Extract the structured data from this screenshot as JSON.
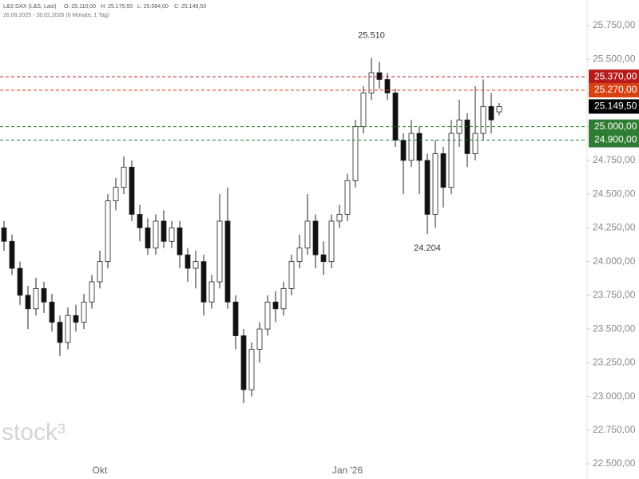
{
  "chart_data": {
    "type": "candlestick",
    "legend": "L&S DAX (L&S, Last)",
    "ohlc": [
      "O: 25.110,00",
      "H: 25.175,50",
      "L: 25.084,00",
      "C: 25.149,50"
    ],
    "range": "26.08.2025 - 28.02.2026 (6 Monate, 1 Tag)",
    "watermark": "stock³",
    "categories": [
      null,
      null,
      null,
      null,
      null,
      null,
      null,
      null,
      null,
      null,
      null,
      null,
      "Okt",
      null,
      null,
      null,
      null,
      null,
      null,
      null,
      null,
      null,
      null,
      null,
      null,
      null,
      null,
      null,
      null,
      null,
      null,
      null,
      null,
      null,
      null,
      null,
      null,
      null,
      null,
      null,
      null,
      null,
      null,
      "Jan '26",
      null,
      null,
      null,
      null,
      null,
      null,
      null,
      null,
      null,
      null,
      null,
      null,
      null,
      null,
      null,
      null,
      null,
      null,
      null
    ],
    "open": [
      24250,
      24150,
      23950,
      23750,
      23650,
      23800,
      23700,
      23550,
      23400,
      23600,
      23550,
      23700,
      23850,
      24000,
      24450,
      24550,
      24700,
      24350,
      24250,
      24100,
      24300,
      24150,
      24250,
      24050,
      23950,
      24000,
      23700,
      23850,
      24300,
      23700,
      23450,
      23050,
      23350,
      23500,
      23700,
      23650,
      23800,
      24000,
      24100,
      24300,
      24050,
      24000,
      24300,
      24350,
      24600,
      25000,
      25250,
      25400,
      25350,
      25250,
      24900,
      24750,
      24950,
      24750,
      24350,
      24800,
      24550,
      24950,
      25050,
      24800,
      24950,
      25150,
      25110
    ],
    "high": [
      24300,
      24200,
      24000,
      23820,
      23880,
      23850,
      23760,
      23600,
      23660,
      23680,
      23760,
      23900,
      24080,
      24500,
      24620,
      24780,
      24750,
      24420,
      24320,
      24350,
      24380,
      24300,
      24300,
      24100,
      24080,
      24050,
      23900,
      24500,
      24550,
      23750,
      23500,
      23400,
      23550,
      23750,
      23780,
      23850,
      24050,
      24200,
      24500,
      24350,
      24150,
      24350,
      24420,
      24650,
      25050,
      25300,
      25510,
      25480,
      25400,
      25280,
      24950,
      25050,
      25000,
      24800,
      24900,
      24850,
      25050,
      25200,
      25100,
      25300,
      25350,
      25250,
      25175.5
    ],
    "low": [
      24080,
      23900,
      23680,
      23500,
      23600,
      23620,
      23480,
      23300,
      23350,
      23480,
      23500,
      23650,
      23800,
      23950,
      24380,
      24500,
      24300,
      24150,
      24050,
      24050,
      24100,
      24100,
      23950,
      23850,
      23800,
      23600,
      23650,
      23800,
      23650,
      23350,
      22950,
      23000,
      23250,
      23450,
      23550,
      23600,
      23750,
      23950,
      24050,
      23950,
      23900,
      23950,
      24250,
      24300,
      24550,
      24950,
      25200,
      25280,
      25200,
      24850,
      24500,
      24700,
      24500,
      24204,
      24250,
      24400,
      24500,
      24850,
      24700,
      24750,
      24900,
      24950,
      25084
    ],
    "close": [
      24150,
      23950,
      23750,
      23650,
      23800,
      23700,
      23550,
      23400,
      23600,
      23550,
      23700,
      23850,
      24000,
      24450,
      24550,
      24700,
      24350,
      24250,
      24100,
      24300,
      24150,
      24250,
      24050,
      23950,
      24000,
      23700,
      23850,
      24300,
      23700,
      23450,
      23050,
      23350,
      23500,
      23700,
      23650,
      23800,
      24000,
      24100,
      24300,
      24050,
      24000,
      24300,
      24350,
      24600,
      25000,
      25250,
      25400,
      25350,
      25250,
      24900,
      24750,
      24950,
      24750,
      24350,
      24800,
      24550,
      24950,
      25050,
      24800,
      24950,
      25150,
      25050,
      25149.5
    ],
    "up_color": "#ffffff",
    "down_color": "#111111",
    "ylim": [
      22388,
      25939
    ],
    "yticks": [
      {
        "value": 22500,
        "label": "22.500,00"
      },
      {
        "value": 22750,
        "label": "22.750,00"
      },
      {
        "value": 23000,
        "label": "23.000,00"
      },
      {
        "value": 23250,
        "label": "23.250,00"
      },
      {
        "value": 23500,
        "label": "23.500,00"
      },
      {
        "value": 23750,
        "label": "23.750,00"
      },
      {
        "value": 24000,
        "label": "24.000,00"
      },
      {
        "value": 24250,
        "label": "24.250,00"
      },
      {
        "value": 24500,
        "label": "24.500,00"
      },
      {
        "value": 24750,
        "label": "24.750,00"
      },
      {
        "value": 25000,
        "label": "25.000,00"
      },
      {
        "value": 25250,
        "label": "25.250,00"
      },
      {
        "value": 25500,
        "label": "25.500,00"
      },
      {
        "value": 25750,
        "label": "25.750,00"
      }
    ],
    "levels": [
      {
        "value": 25370,
        "label": "25.370,00",
        "color": "#b71c1c"
      },
      {
        "value": 25270,
        "label": "25.270,00",
        "color": "#d84315"
      },
      {
        "value": 25000,
        "label": "25.000,00",
        "color": "#2e7d32"
      },
      {
        "value": 24900,
        "label": "24.900,00",
        "color": "#2e7d32"
      }
    ],
    "last_price": {
      "value": 25149.5,
      "label": "25.149,50",
      "color": "#000000"
    },
    "annotations": [
      {
        "value": 25510,
        "label": "25.510",
        "at": "high"
      },
      {
        "value": 24204,
        "label": "24.204",
        "at": "low"
      }
    ]
  }
}
